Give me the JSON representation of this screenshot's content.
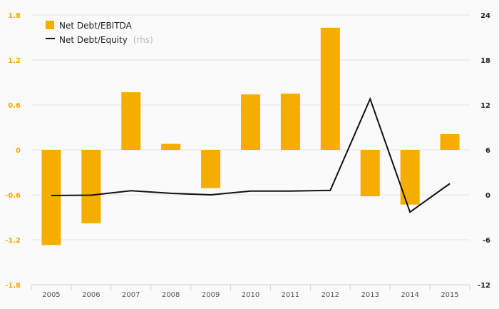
{
  "chart_data": {
    "type": "bar",
    "categories": [
      "2005",
      "2006",
      "2007",
      "2008",
      "2009",
      "2010",
      "2011",
      "2012",
      "2013",
      "2014",
      "2015"
    ],
    "series": [
      {
        "name": "Net Debt/EBITDA",
        "type": "bar",
        "axis": "left",
        "color": "#f5ae00",
        "values": [
          -1.27,
          -0.98,
          0.77,
          0.08,
          -0.51,
          0.74,
          0.75,
          1.63,
          -0.62,
          -0.73,
          0.21
        ]
      },
      {
        "name": "Net Debt/Equity",
        "name_note": "(rhs)",
        "type": "line",
        "axis": "right",
        "color": "#111111",
        "values": [
          -0.1,
          -0.05,
          0.55,
          0.2,
          0.0,
          0.5,
          0.5,
          0.6,
          12.8,
          -2.3,
          1.5
        ]
      }
    ],
    "y_left": {
      "ylim": [
        -1.8,
        1.8
      ],
      "ticks": [
        "1.8",
        "1.2",
        "0.6",
        "0",
        "-0.6",
        "-1.2",
        "-1.8"
      ]
    },
    "y_right": {
      "ylim": [
        -12,
        24
      ],
      "ticks": [
        "24",
        "18",
        "12",
        "6",
        "0",
        "-6",
        "-12"
      ]
    },
    "grid": true,
    "legend": "top-left"
  }
}
